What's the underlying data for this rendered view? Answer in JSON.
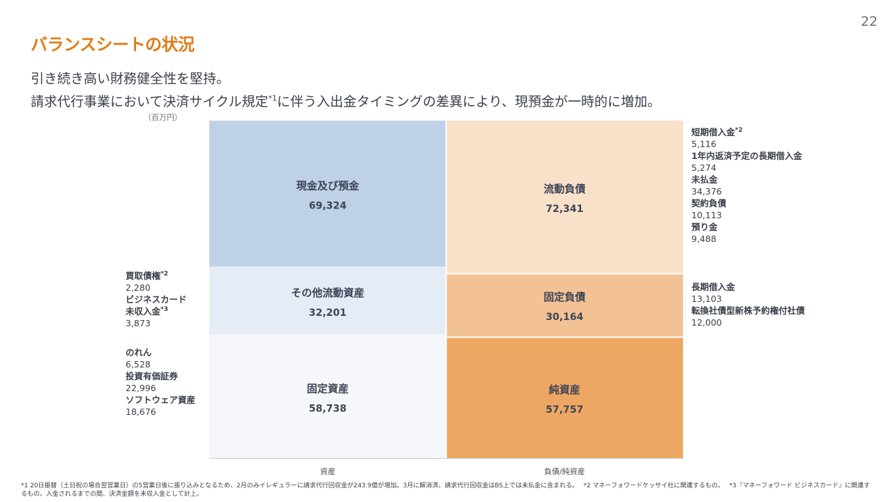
{
  "page_number": "22",
  "title": "バランスシートの状況",
  "subtitle": {
    "line1": "引き続き高い財務健全性を堅持。",
    "line2_before": "請求代行事業において決済サイクル規定",
    "line2_sup": "*1",
    "line2_after": "に伴う入出金タイミングの差異により、現預金が一時的に増加。"
  },
  "unit": "（百万円）",
  "colors": {
    "title": "#e07b16",
    "assets": [
      "#bfd1e6",
      "#e4ecf5",
      "#f5f7fa"
    ],
    "liabilities": [
      "#f9e0c9",
      "#f2c295",
      "#eea763"
    ]
  },
  "chart_data": {
    "type": "bar",
    "stacked": true,
    "categories": [
      "資産",
      "負債/純資産"
    ],
    "series": [
      {
        "name": "現金及び預金",
        "category": "資産",
        "value": 69324,
        "value_label": "69,324"
      },
      {
        "name": "その他流動資産",
        "category": "資産",
        "value": 32201,
        "value_label": "32,201"
      },
      {
        "name": "固定資産",
        "category": "資産",
        "value": 58738,
        "value_label": "58,738"
      },
      {
        "name": "流動負債",
        "category": "負債/純資産",
        "value": 72341,
        "value_label": "72,341"
      },
      {
        "name": "固定負債",
        "category": "負債/純資産",
        "value": 30164,
        "value_label": "30,164"
      },
      {
        "name": "純資産",
        "category": "負債/純資産",
        "value": 57757,
        "value_label": "57,757"
      }
    ]
  },
  "left_notes": {
    "other_current": [
      {
        "label": "買取債権",
        "sup": "*2",
        "value": "2,280"
      },
      {
        "label": "ビジネスカード",
        "sup": "",
        "value": ""
      },
      {
        "label": "未収入金",
        "sup": "*3",
        "value": "3,873"
      }
    ],
    "fixed": [
      {
        "label": "のれん",
        "sup": "",
        "value": "6,528"
      },
      {
        "label": "投資有価証券",
        "sup": "",
        "value": "22,996"
      },
      {
        "label": "ソフトウェア資産",
        "sup": "",
        "value": "18,676"
      }
    ]
  },
  "right_notes": {
    "current_liab": [
      {
        "label": "短期借入金",
        "sup": "*2",
        "value": "5,116"
      },
      {
        "label": "1年内返済予定の長期借入金",
        "sup": "",
        "value": "5,274"
      },
      {
        "label": "未払金",
        "sup": "",
        "value": "34,376"
      },
      {
        "label": "契約負債",
        "sup": "",
        "value": "10,113"
      },
      {
        "label": "預り金",
        "sup": "",
        "value": "9,488"
      }
    ],
    "fixed_liab": [
      {
        "label": "長期借入金",
        "sup": "",
        "value": "13,103"
      },
      {
        "label": "転換社債型新株予約権付社債",
        "sup": "",
        "value": "12,000"
      }
    ]
  },
  "footnotes": {
    "note1": "*1 20日振替（土日祝の場合翌営業日）の5営業日後に振り込みとなるため、2月のみイレギュラーに請求代行回収金が243.9億が増加。3月に解消済。請求代行回収金はBS上では未払金に含まれる。",
    "note2": "*2 マネーフォワードケッサイ社に関連するもの。",
    "note3": "*3『マネーフォワード ビジネスカード』に関連するもの。入金されるまでの間、決済金額を未収入金として計上。"
  }
}
